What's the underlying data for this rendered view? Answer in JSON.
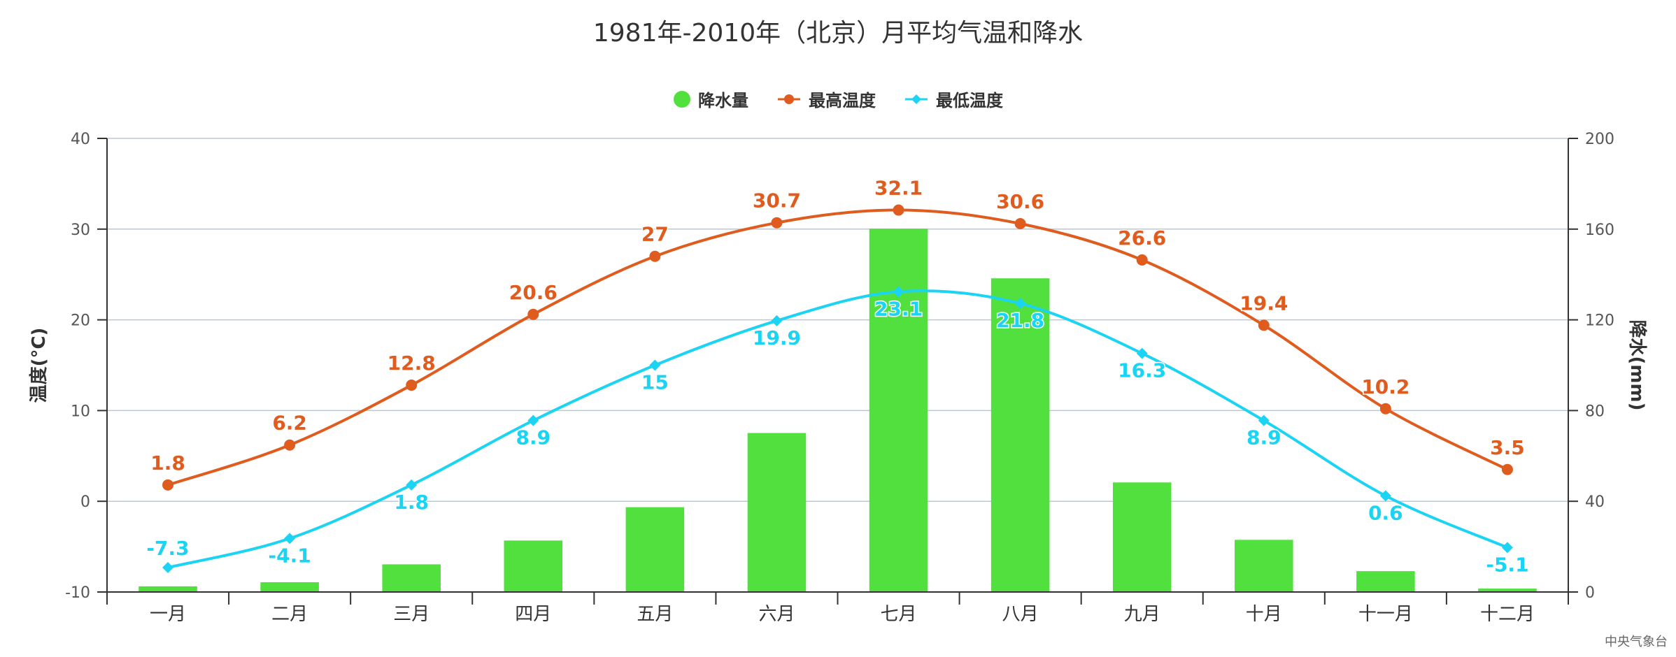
{
  "chart_data": {
    "type": "bar+line",
    "title": "1981年-2010年（北京）月平均气温和降水",
    "categories": [
      "一月",
      "二月",
      "三月",
      "四月",
      "五月",
      "六月",
      "七月",
      "八月",
      "九月",
      "十月",
      "十一月",
      "十二月"
    ],
    "series": [
      {
        "name": "降水量",
        "type": "bar",
        "axis": "right",
        "color": "#52e03f",
        "values": [
          2.5,
          4.3,
          12.2,
          22.7,
          37.4,
          70.1,
          160.2,
          138.3,
          48.3,
          23.0,
          9.2,
          1.5
        ]
      },
      {
        "name": "最高温度",
        "type": "line",
        "axis": "left",
        "color": "#e05c1e",
        "marker": "circle",
        "values": [
          1.8,
          6.2,
          12.8,
          20.6,
          27,
          30.7,
          32.1,
          30.6,
          26.6,
          19.4,
          10.2,
          3.5
        ]
      },
      {
        "name": "最低温度",
        "type": "line",
        "axis": "left",
        "color": "#1bd4f3",
        "marker": "diamond",
        "values": [
          -7.3,
          -4.1,
          1.8,
          8.9,
          15,
          19.9,
          23.1,
          21.8,
          16.3,
          8.9,
          0.6,
          -5.1
        ]
      }
    ],
    "y_left": {
      "label": "温度(°C)",
      "range": [
        -10,
        40
      ],
      "ticks": [
        "-10",
        "0",
        "10",
        "20",
        "30",
        "40"
      ]
    },
    "y_right": {
      "label": "降水(mm)",
      "range": [
        0,
        200
      ],
      "ticks": [
        "0",
        "40",
        "80",
        "120",
        "160",
        "200"
      ]
    },
    "grid": true,
    "legend_position": "top-center"
  },
  "legend": {
    "precip": "降水量",
    "tmax": "最高温度",
    "tmin": "最低温度"
  },
  "credit": "中央气象台"
}
